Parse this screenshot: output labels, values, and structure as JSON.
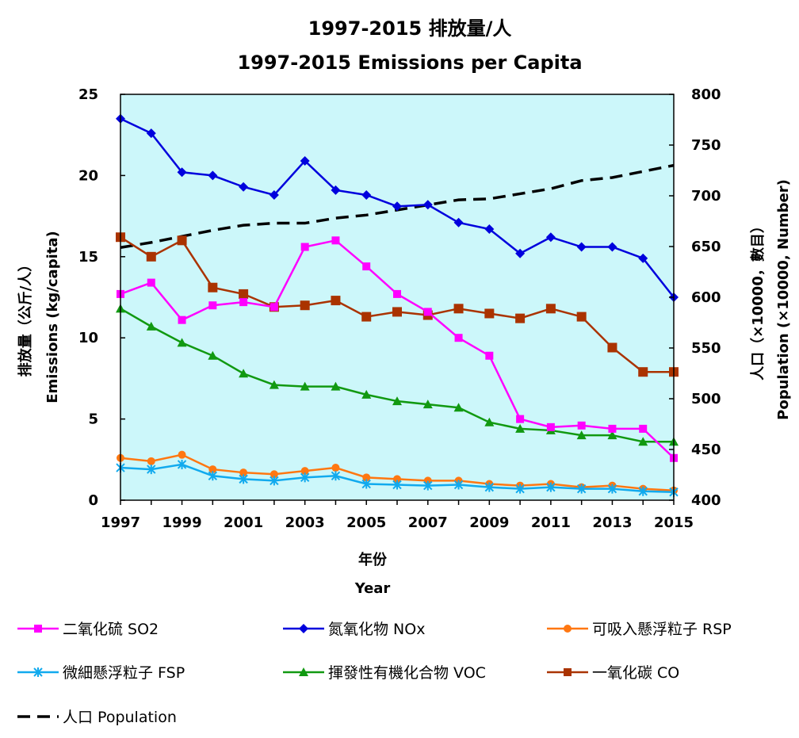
{
  "chart_data": {
    "type": "line",
    "title": "1997-2015 排放量/人",
    "subtitle": "1997-2015 Emissions per Capita",
    "xlabel": "年份",
    "xlabel_en": "Year",
    "ylabel": "排放量（公斤/人）",
    "ylabel_en": "Emissions (kg/capita)",
    "y2label": "人口（×10000，數目）",
    "y2label_en": "Population (×10000, Number)",
    "x": [
      1997,
      1998,
      1999,
      2000,
      2001,
      2002,
      2003,
      2004,
      2005,
      2006,
      2007,
      2008,
      2009,
      2010,
      2011,
      2012,
      2013,
      2014,
      2015
    ],
    "x_ticks": [
      "1997",
      "1999",
      "2001",
      "2003",
      "2005",
      "2007",
      "2009",
      "2011",
      "2013",
      "2015"
    ],
    "xlim": [
      1997,
      2015
    ],
    "ylim": [
      0,
      25
    ],
    "y_ticks": [
      "0",
      "5",
      "10",
      "15",
      "20",
      "25"
    ],
    "y2lim": [
      400,
      800
    ],
    "y2_ticks": [
      "400",
      "450",
      "500",
      "550",
      "600",
      "650",
      "700",
      "750",
      "800"
    ],
    "plot_background": "#ccf7fa",
    "grid": false,
    "legend_position": "bottom",
    "series": [
      {
        "name": "二氧化硫 SO2",
        "color": "#ff00ff",
        "marker": "square",
        "axis": "left",
        "values": [
          12.7,
          13.4,
          11.1,
          12.0,
          12.2,
          11.9,
          15.6,
          16.0,
          14.4,
          12.7,
          11.6,
          10.0,
          8.9,
          5.0,
          4.5,
          4.6,
          4.4,
          4.4,
          2.6
        ]
      },
      {
        "name": "氮氧化物 NOx",
        "color": "#0000dd",
        "marker": "diamond",
        "axis": "left",
        "values": [
          23.5,
          22.6,
          20.2,
          20.0,
          19.3,
          18.8,
          20.9,
          19.1,
          18.8,
          18.1,
          18.2,
          17.1,
          16.7,
          15.2,
          16.2,
          15.6,
          15.6,
          14.9,
          12.5
        ]
      },
      {
        "name": "可吸入懸浮粒子 RSP",
        "color": "#ff7711",
        "marker": "circle",
        "axis": "left",
        "values": [
          2.6,
          2.4,
          2.8,
          1.9,
          1.7,
          1.6,
          1.8,
          2.0,
          1.4,
          1.3,
          1.2,
          1.2,
          1.0,
          0.9,
          1.0,
          0.8,
          0.9,
          0.7,
          0.6
        ]
      },
      {
        "name": "微細懸浮粒子 FSP",
        "color": "#11aaee",
        "marker": "asterisk",
        "axis": "left",
        "values": [
          2.0,
          1.9,
          2.2,
          1.5,
          1.3,
          1.2,
          1.4,
          1.5,
          1.0,
          0.95,
          0.9,
          0.95,
          0.8,
          0.7,
          0.8,
          0.7,
          0.7,
          0.55,
          0.5
        ]
      },
      {
        "name": "揮發性有機化合物 VOC",
        "color": "#119911",
        "marker": "triangle",
        "axis": "left",
        "values": [
          11.8,
          10.7,
          9.7,
          8.9,
          7.8,
          7.1,
          7.0,
          7.0,
          6.5,
          6.1,
          5.9,
          5.7,
          4.8,
          4.4,
          4.3,
          4.0,
          4.0,
          3.6,
          3.6
        ]
      },
      {
        "name": "一氧化碳 CO",
        "color": "#aa3300",
        "marker": "square",
        "axis": "left",
        "values": [
          16.2,
          15.0,
          16.0,
          13.1,
          12.7,
          11.9,
          12.0,
          12.3,
          11.3,
          11.6,
          11.4,
          11.8,
          11.5,
          11.2,
          11.8,
          11.3,
          9.4,
          7.9,
          7.9
        ]
      },
      {
        "name": "人口 Population",
        "color": "#000000",
        "marker": "none",
        "dashed": true,
        "axis": "right",
        "values": [
          649,
          654,
          660,
          666,
          671,
          673,
          673,
          678,
          681,
          686,
          691,
          696,
          697,
          702,
          707,
          715,
          718,
          724,
          730
        ]
      }
    ]
  }
}
